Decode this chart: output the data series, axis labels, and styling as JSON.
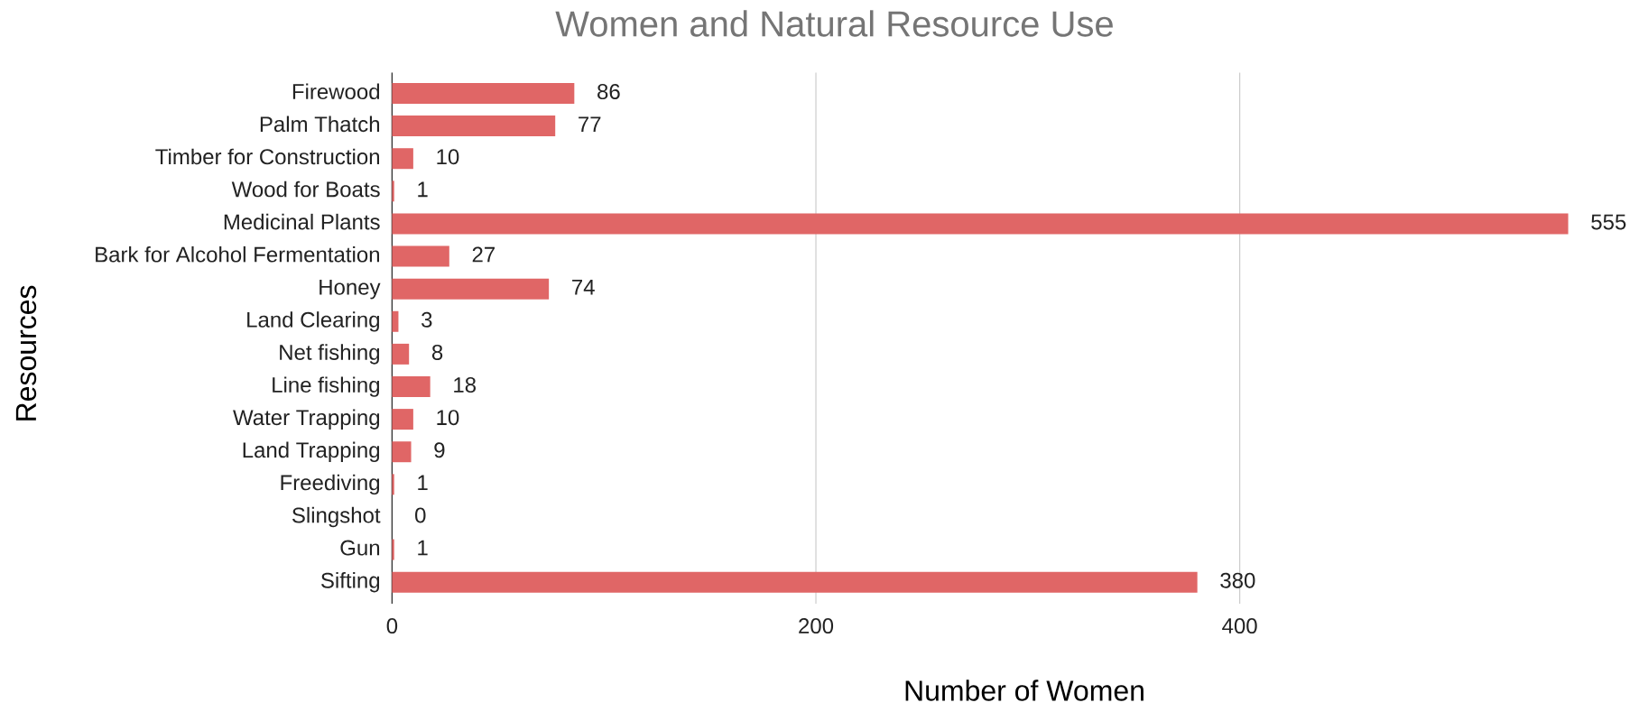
{
  "chart_data": {
    "type": "bar",
    "orientation": "horizontal",
    "title": "Women and Natural Resource Use",
    "xlabel": "Number of Women",
    "ylabel": "Resources",
    "categories": [
      "Firewood",
      "Palm Thatch",
      "Timber for Construction",
      "Wood for Boats",
      "Medicinal Plants",
      "Bark for Alcohol Fermentation",
      "Honey",
      "Land Clearing",
      "Net fishing",
      "Line fishing",
      "Water Trapping",
      "Land Trapping",
      "Freediving",
      "Slingshot",
      "Gun",
      "Sifting"
    ],
    "values": [
      86,
      77,
      10,
      1,
      555,
      27,
      74,
      3,
      8,
      18,
      10,
      9,
      1,
      0,
      1,
      380
    ],
    "color": "#e06666",
    "xlim": [
      0,
      555
    ],
    "xticks": [
      0,
      200,
      400
    ],
    "grid": "x",
    "data_labels": true
  }
}
